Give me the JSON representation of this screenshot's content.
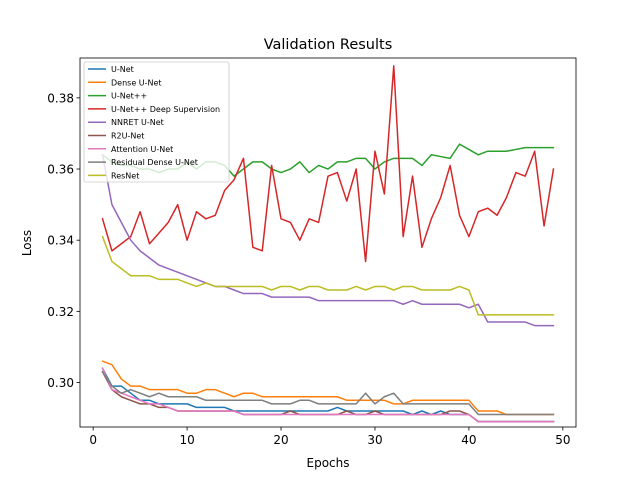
{
  "chart_data": {
    "type": "line",
    "title": "Validation Results",
    "xlabel": "Epochs",
    "ylabel": "Loss",
    "xlim": [
      -1.4,
      51.4
    ],
    "ylim": [
      0.2875,
      0.3912
    ],
    "xticks": [
      0,
      10,
      20,
      30,
      40,
      50
    ],
    "yticks": [
      0.3,
      0.32,
      0.34,
      0.36,
      0.38
    ],
    "ytick_labels": [
      "0.30",
      "0.32",
      "0.34",
      "0.36",
      "0.38"
    ],
    "grid": false,
    "legend_position": "upper-left",
    "x": [
      1,
      2,
      3,
      4,
      5,
      6,
      7,
      8,
      9,
      10,
      11,
      12,
      13,
      14,
      15,
      16,
      17,
      18,
      19,
      20,
      21,
      22,
      23,
      24,
      25,
      26,
      27,
      28,
      29,
      30,
      31,
      32,
      33,
      34,
      35,
      36,
      37,
      38,
      39,
      40,
      41,
      42,
      43,
      44,
      45,
      46,
      47,
      48,
      49
    ],
    "series": [
      {
        "name": "U-Net",
        "color": "#1f77b4",
        "values": [
          0.304,
          0.299,
          0.299,
          0.297,
          0.295,
          0.295,
          0.294,
          0.294,
          0.294,
          0.294,
          0.293,
          0.293,
          0.293,
          0.293,
          0.292,
          0.292,
          0.292,
          0.292,
          0.292,
          0.292,
          0.292,
          0.292,
          0.292,
          0.292,
          0.292,
          0.293,
          0.292,
          0.292,
          0.292,
          0.292,
          0.292,
          0.292,
          0.292,
          0.291,
          0.292,
          0.291,
          0.292,
          0.291,
          0.291,
          0.291,
          0.289,
          0.289,
          0.289,
          0.289,
          0.289,
          0.289,
          0.289,
          0.289,
          0.289
        ]
      },
      {
        "name": "Dense U-Net",
        "color": "#ff7f0e",
        "values": [
          0.306,
          0.305,
          0.301,
          0.299,
          0.299,
          0.298,
          0.298,
          0.298,
          0.298,
          0.297,
          0.297,
          0.298,
          0.298,
          0.297,
          0.296,
          0.297,
          0.297,
          0.296,
          0.296,
          0.296,
          0.296,
          0.296,
          0.296,
          0.296,
          0.296,
          0.296,
          0.295,
          0.295,
          0.295,
          0.295,
          0.295,
          0.294,
          0.294,
          0.295,
          0.295,
          0.295,
          0.295,
          0.295,
          0.295,
          0.295,
          0.292,
          0.292,
          0.292,
          0.291,
          0.291,
          0.291,
          0.291,
          0.291,
          0.291
        ]
      },
      {
        "name": "U-Net++",
        "color": "#2ca02c",
        "values": [
          0.364,
          0.362,
          0.361,
          0.361,
          0.36,
          0.36,
          0.359,
          0.36,
          0.36,
          0.362,
          0.36,
          0.362,
          0.362,
          0.361,
          0.358,
          0.36,
          0.362,
          0.362,
          0.36,
          0.359,
          0.36,
          0.362,
          0.359,
          0.361,
          0.36,
          0.362,
          0.362,
          0.363,
          0.363,
          0.36,
          0.362,
          0.363,
          0.363,
          0.363,
          0.361,
          0.364,
          0.3635,
          0.363,
          0.367,
          0.3655,
          0.364,
          0.365,
          0.365,
          0.365,
          0.3655,
          0.366,
          0.366,
          0.366,
          0.366
        ]
      },
      {
        "name": "U-Net++ Deep Supervision",
        "color": "#d62728",
        "values": [
          0.346,
          0.337,
          0.339,
          0.341,
          0.348,
          0.339,
          0.342,
          0.345,
          0.35,
          0.34,
          0.348,
          0.346,
          0.347,
          0.354,
          0.357,
          0.363,
          0.338,
          0.337,
          0.361,
          0.346,
          0.345,
          0.34,
          0.346,
          0.345,
          0.358,
          0.359,
          0.351,
          0.36,
          0.334,
          0.365,
          0.353,
          0.389,
          0.341,
          0.358,
          0.338,
          0.346,
          0.352,
          0.361,
          0.347,
          0.341,
          0.348,
          0.349,
          0.347,
          0.352,
          0.359,
          0.358,
          0.365,
          0.344,
          0.36
        ]
      },
      {
        "name": "NNRET U-Net",
        "color": "#9467bd",
        "values": [
          0.364,
          0.35,
          0.345,
          0.34,
          0.337,
          0.335,
          0.333,
          0.332,
          0.331,
          0.33,
          0.329,
          0.328,
          0.327,
          0.327,
          0.326,
          0.325,
          0.325,
          0.325,
          0.324,
          0.324,
          0.324,
          0.324,
          0.324,
          0.323,
          0.323,
          0.323,
          0.323,
          0.323,
          0.323,
          0.323,
          0.323,
          0.323,
          0.322,
          0.323,
          0.322,
          0.322,
          0.322,
          0.322,
          0.322,
          0.321,
          0.322,
          0.317,
          0.317,
          0.317,
          0.317,
          0.317,
          0.316,
          0.316,
          0.316
        ]
      },
      {
        "name": "R2U-Net",
        "color": "#8c564b",
        "values": [
          0.303,
          0.298,
          0.296,
          0.295,
          0.294,
          0.294,
          0.293,
          0.293,
          0.292,
          0.292,
          0.292,
          0.292,
          0.292,
          0.292,
          0.292,
          0.291,
          0.291,
          0.291,
          0.291,
          0.291,
          0.292,
          0.291,
          0.291,
          0.291,
          0.291,
          0.291,
          0.292,
          0.291,
          0.291,
          0.292,
          0.291,
          0.291,
          0.291,
          0.291,
          0.291,
          0.291,
          0.291,
          0.292,
          0.292,
          0.291,
          0.289,
          0.289,
          0.289,
          0.289,
          0.289,
          0.289,
          0.289,
          0.289,
          0.289
        ]
      },
      {
        "name": "Attention U-Net",
        "color": "#e377c2",
        "values": [
          0.304,
          0.298,
          0.297,
          0.296,
          0.295,
          0.294,
          0.294,
          0.293,
          0.292,
          0.292,
          0.292,
          0.292,
          0.292,
          0.292,
          0.292,
          0.291,
          0.291,
          0.291,
          0.291,
          0.291,
          0.291,
          0.291,
          0.291,
          0.291,
          0.291,
          0.291,
          0.291,
          0.291,
          0.291,
          0.291,
          0.291,
          0.291,
          0.291,
          0.291,
          0.291,
          0.291,
          0.291,
          0.291,
          0.291,
          0.291,
          0.289,
          0.289,
          0.289,
          0.289,
          0.289,
          0.289,
          0.289,
          0.289,
          0.289
        ]
      },
      {
        "name": "Residual Dense U-Net",
        "color": "#7f7f7f",
        "values": [
          0.303,
          0.299,
          0.297,
          0.298,
          0.297,
          0.296,
          0.297,
          0.296,
          0.296,
          0.296,
          0.296,
          0.295,
          0.295,
          0.295,
          0.295,
          0.295,
          0.295,
          0.295,
          0.294,
          0.294,
          0.294,
          0.295,
          0.295,
          0.294,
          0.294,
          0.294,
          0.294,
          0.294,
          0.297,
          0.294,
          0.296,
          0.297,
          0.294,
          0.294,
          0.294,
          0.294,
          0.294,
          0.294,
          0.294,
          0.294,
          0.291,
          0.291,
          0.291,
          0.291,
          0.291,
          0.291,
          0.291,
          0.291,
          0.291
        ]
      },
      {
        "name": "ResNet",
        "color": "#bcbd22",
        "values": [
          0.341,
          0.334,
          0.332,
          0.33,
          0.33,
          0.33,
          0.329,
          0.329,
          0.329,
          0.328,
          0.327,
          0.328,
          0.327,
          0.327,
          0.327,
          0.327,
          0.327,
          0.327,
          0.326,
          0.327,
          0.327,
          0.326,
          0.327,
          0.327,
          0.326,
          0.326,
          0.326,
          0.327,
          0.326,
          0.327,
          0.327,
          0.326,
          0.327,
          0.327,
          0.326,
          0.326,
          0.326,
          0.326,
          0.327,
          0.326,
          0.319,
          0.319,
          0.319,
          0.319,
          0.319,
          0.319,
          0.319,
          0.319,
          0.319
        ]
      }
    ]
  }
}
